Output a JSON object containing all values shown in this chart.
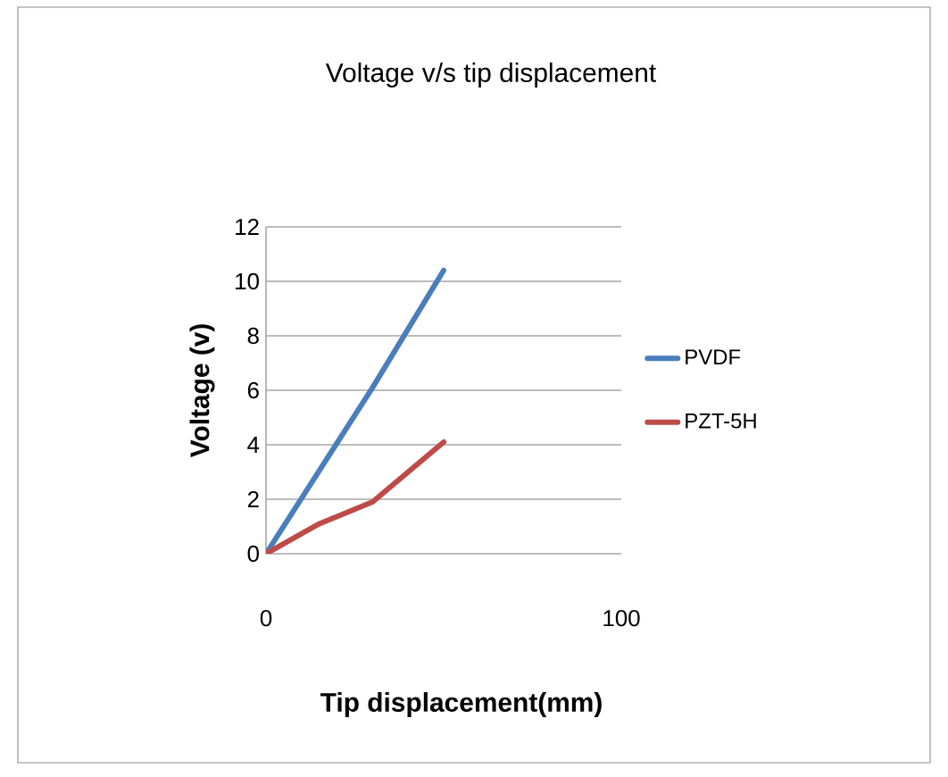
{
  "chart_data": {
    "type": "line",
    "title": "Voltage v/s tip displacement",
    "xlabel": "Tip displacement(mm)",
    "ylabel": "Voltage (v)",
    "xlim": [
      0,
      100
    ],
    "xticks": [
      0,
      100
    ],
    "ylim": [
      0,
      12
    ],
    "yticks": [
      0,
      2,
      4,
      6,
      8,
      10,
      12
    ],
    "grid": "y",
    "legend": "right",
    "marker": "none",
    "line_style": "solid",
    "series": [
      {
        "name": "PVDF",
        "color": "#4a7ebb",
        "x": [
          0,
          30,
          50
        ],
        "values": [
          0,
          6.1,
          10.4
        ]
      },
      {
        "name": "PZT-5H",
        "color": "#be4b48",
        "x": [
          0,
          15,
          30,
          50
        ],
        "values": [
          0,
          1.1,
          1.9,
          4.1
        ]
      }
    ]
  }
}
